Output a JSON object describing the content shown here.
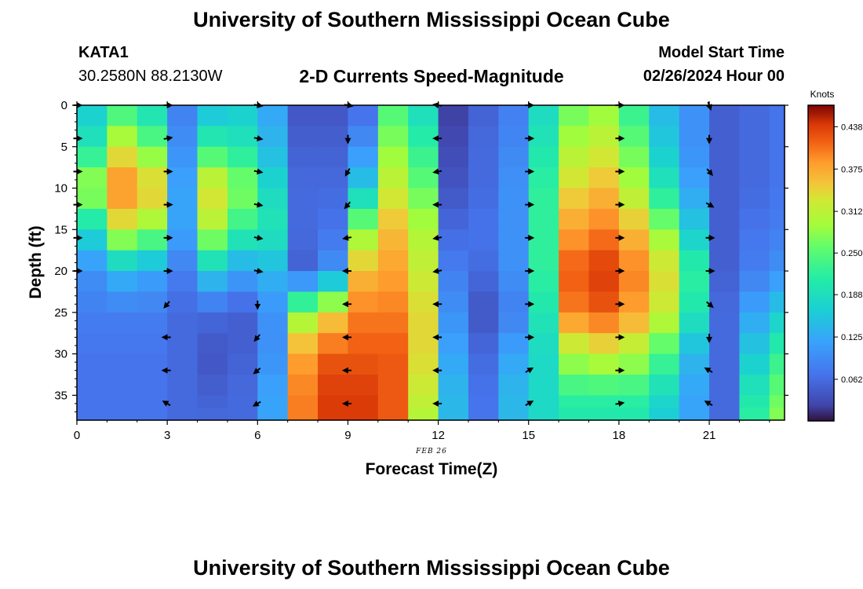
{
  "header": {
    "title": "University of Southern Mississippi Ocean Cube",
    "station_id": "KATA1",
    "station_coords": "30.2580N  88.2130W",
    "subtitle": "2-D Currents Speed-Magnitude",
    "model_start_label": "Model Start Time",
    "model_start_value": "02/26/2024 Hour 00"
  },
  "footer": {
    "title": "University of Southern Mississippi Ocean Cube"
  },
  "chart_data": {
    "type": "heatmap",
    "title": "2-D Currents Speed-Magnitude",
    "xlabel": "Forecast Time(Z)",
    "ylabel": "Depth (ft)",
    "xlim": [
      0,
      23.5
    ],
    "ylim": [
      38,
      0
    ],
    "xticks": [
      0,
      3,
      6,
      9,
      12,
      15,
      18,
      21
    ],
    "yticks": [
      0,
      5,
      10,
      15,
      20,
      25,
      30,
      35
    ],
    "date_label": "FEB 26",
    "colorbar": {
      "label": "Knots",
      "min": 0.0,
      "max": 0.47,
      "ticks": [
        "0.438",
        "0.375",
        "0.312",
        "0.250",
        "0.188",
        "0.125",
        "0.062"
      ]
    },
    "hour_profiles": {
      "hours": [
        0,
        1,
        2,
        3,
        4,
        5,
        6,
        7,
        8,
        9,
        10,
        11,
        12,
        13,
        14,
        15,
        16,
        17,
        18,
        19,
        20,
        21,
        22,
        23
      ],
      "depths": [
        0,
        5,
        10,
        15,
        20,
        25,
        30,
        35,
        38
      ],
      "speed_knots": [
        [
          0.16,
          0.2,
          0.3,
          0.18,
          0.1,
          0.08,
          0.07,
          0.07,
          0.07
        ],
        [
          0.22,
          0.32,
          0.4,
          0.32,
          0.14,
          0.08,
          0.07,
          0.07,
          0.07
        ],
        [
          0.18,
          0.26,
          0.36,
          0.28,
          0.12,
          0.08,
          0.07,
          0.07,
          0.07
        ],
        [
          0.08,
          0.1,
          0.12,
          0.12,
          0.08,
          0.06,
          0.06,
          0.06,
          0.06
        ],
        [
          0.14,
          0.22,
          0.34,
          0.3,
          0.16,
          0.06,
          0.04,
          0.05,
          0.06
        ],
        [
          0.16,
          0.2,
          0.28,
          0.22,
          0.12,
          0.05,
          0.05,
          0.06,
          0.06
        ],
        [
          0.12,
          0.14,
          0.18,
          0.2,
          0.14,
          0.1,
          0.1,
          0.12,
          0.12
        ],
        [
          0.04,
          0.05,
          0.06,
          0.06,
          0.05,
          0.28,
          0.38,
          0.4,
          0.4
        ],
        [
          0.04,
          0.05,
          0.06,
          0.07,
          0.1,
          0.34,
          0.42,
          0.44,
          0.44
        ],
        [
          0.06,
          0.1,
          0.16,
          0.28,
          0.36,
          0.4,
          0.42,
          0.44,
          0.44
        ],
        [
          0.24,
          0.28,
          0.32,
          0.36,
          0.38,
          0.4,
          0.42,
          0.42,
          0.42
        ],
        [
          0.18,
          0.22,
          0.26,
          0.3,
          0.32,
          0.34,
          0.34,
          0.32,
          0.3
        ],
        [
          0.02,
          0.03,
          0.04,
          0.06,
          0.08,
          0.1,
          0.12,
          0.14,
          0.14
        ],
        [
          0.05,
          0.06,
          0.06,
          0.07,
          0.06,
          0.04,
          0.06,
          0.07,
          0.07
        ],
        [
          0.08,
          0.09,
          0.1,
          0.1,
          0.1,
          0.08,
          0.12,
          0.14,
          0.14
        ],
        [
          0.18,
          0.2,
          0.22,
          0.22,
          0.22,
          0.2,
          0.18,
          0.18,
          0.18
        ],
        [
          0.26,
          0.3,
          0.34,
          0.38,
          0.42,
          0.4,
          0.3,
          0.22,
          0.2
        ],
        [
          0.28,
          0.32,
          0.36,
          0.4,
          0.44,
          0.42,
          0.32,
          0.22,
          0.2
        ],
        [
          0.22,
          0.26,
          0.3,
          0.36,
          0.4,
          0.38,
          0.3,
          0.22,
          0.2
        ],
        [
          0.14,
          0.16,
          0.2,
          0.28,
          0.34,
          0.32,
          0.24,
          0.18,
          0.16
        ],
        [
          0.1,
          0.1,
          0.12,
          0.16,
          0.22,
          0.2,
          0.14,
          0.12,
          0.12
        ],
        [
          0.05,
          0.05,
          0.05,
          0.05,
          0.05,
          0.06,
          0.06,
          0.06,
          0.06
        ],
        [
          0.06,
          0.06,
          0.06,
          0.07,
          0.08,
          0.12,
          0.16,
          0.2,
          0.22
        ],
        [
          0.07,
          0.07,
          0.07,
          0.08,
          0.1,
          0.16,
          0.22,
          0.26,
          0.28
        ]
      ]
    },
    "vectors": {
      "hours": [
        0,
        3,
        6,
        9,
        12,
        15,
        18,
        21
      ],
      "depths": [
        0,
        4,
        8,
        12,
        16,
        20,
        24,
        28,
        32,
        36
      ],
      "direction_deg": [
        [
          90,
          90,
          90,
          90,
          90,
          90,
          null,
          null,
          null,
          null
        ],
        [
          90,
          80,
          90,
          90,
          90,
          90,
          220,
          270,
          270,
          300
        ],
        [
          100,
          100,
          100,
          100,
          100,
          100,
          180,
          220,
          230,
          240
        ],
        [
          100,
          180,
          210,
          220,
          260,
          270,
          270,
          270,
          270,
          270
        ],
        [
          280,
          270,
          260,
          270,
          260,
          260,
          270,
          270,
          270,
          270
        ],
        [
          90,
          90,
          90,
          90,
          90,
          90,
          90,
          90,
          60,
          60
        ],
        [
          90,
          90,
          90,
          90,
          90,
          90,
          90,
          90,
          90,
          80
        ],
        [
          160,
          180,
          140,
          120,
          90,
          90,
          130,
          180,
          300,
          300
        ]
      ]
    }
  }
}
